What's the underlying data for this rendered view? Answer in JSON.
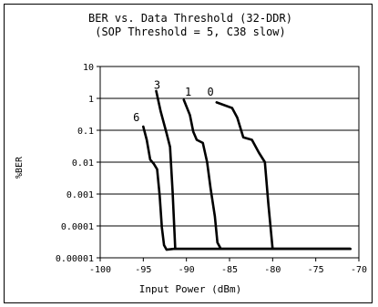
{
  "chart_data": {
    "type": "line",
    "title": "BER vs. Data Threshold (32-DDR)",
    "subtitle": "(SOP Threshold = 5, C38 slow)",
    "xlabel": "Input Power (dBm)",
    "ylabel": "%BER",
    "xlim": [
      -100,
      -70
    ],
    "ylim": [
      1e-05,
      10
    ],
    "yscale": "log",
    "grid": "horizontal",
    "x_ticks": [
      -100,
      -95,
      -90,
      -85,
      -80,
      -75,
      -70
    ],
    "x_tick_labels": [
      "-100",
      "-95",
      "-90",
      "-85",
      "-80",
      "-75",
      "-70"
    ],
    "y_ticks": [
      10,
      1,
      0.1,
      0.01,
      0.001,
      0.0001,
      1e-05
    ],
    "y_tick_labels": [
      "10",
      "1",
      "0.1",
      "0.01",
      "0.001",
      "0.0001",
      "0.00001"
    ],
    "series": [
      {
        "name": "6",
        "label_at": [
          -95.8,
          0.25
        ],
        "points": [
          [
            -95.0,
            0.13
          ],
          [
            -94.6,
            0.05
          ],
          [
            -94.2,
            0.012
          ],
          [
            -93.8,
            0.009
          ],
          [
            -93.4,
            0.006
          ],
          [
            -93.1,
            0.0009
          ],
          [
            -92.85,
            9e-05
          ],
          [
            -92.6,
            2.5e-05
          ],
          [
            -92.3,
            1.8e-05
          ],
          [
            -91.5,
            1.9e-05
          ],
          [
            -71,
            1.9e-05
          ]
        ]
      },
      {
        "name": "3",
        "label_at": [
          -93.4,
          2.6
        ],
        "points": [
          [
            -93.5,
            1.7
          ],
          [
            -93.0,
            0.4
          ],
          [
            -92.3,
            0.08
          ],
          [
            -91.9,
            0.03
          ],
          [
            -91.6,
            0.0012
          ],
          [
            -91.3,
            1.9e-05
          ],
          [
            -71,
            1.9e-05
          ]
        ]
      },
      {
        "name": "1",
        "label_at": [
          -89.8,
          1.6
        ],
        "points": [
          [
            -90.3,
            0.9
          ],
          [
            -89.6,
            0.3
          ],
          [
            -89.2,
            0.09
          ],
          [
            -88.8,
            0.05
          ],
          [
            -88.1,
            0.04
          ],
          [
            -87.6,
            0.01
          ],
          [
            -87.2,
            0.0015
          ],
          [
            -86.7,
            0.0002
          ],
          [
            -86.4,
            3e-05
          ],
          [
            -86.0,
            1.9e-05
          ],
          [
            -71,
            1.9e-05
          ]
        ]
      },
      {
        "name": "0",
        "label_at": [
          -87.2,
          1.6
        ],
        "points": [
          [
            -86.5,
            0.75
          ],
          [
            -84.7,
            0.5
          ],
          [
            -84.1,
            0.25
          ],
          [
            -83.4,
            0.06
          ],
          [
            -82.4,
            0.05
          ],
          [
            -81.6,
            0.02
          ],
          [
            -80.9,
            0.01
          ],
          [
            -80.5,
            0.0005
          ],
          [
            -80.0,
            1.9e-05
          ],
          [
            -71,
            1.9e-05
          ]
        ]
      }
    ],
    "colors": {
      "line": "#000000",
      "grid": "#000000",
      "axis": "#000000",
      "background": "#ffffff"
    }
  }
}
